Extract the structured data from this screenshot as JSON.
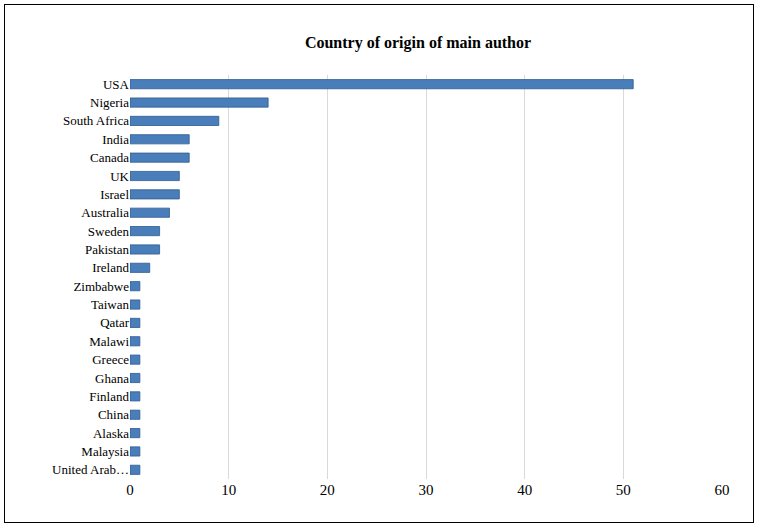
{
  "chart_data": {
    "type": "bar",
    "title": "Country of origin of main author",
    "orientation": "horizontal",
    "categories": [
      "USA",
      "Nigeria",
      "South Africa",
      "India",
      "Canada",
      "UK",
      "Israel",
      "Australia",
      "Sweden",
      "Pakistan",
      "Ireland",
      "Zimbabwe",
      "Taiwan",
      "Qatar",
      "Malawi",
      "Greece",
      "Ghana",
      "Finland",
      "China",
      "Alaska",
      "Malaysia",
      "United Arab…"
    ],
    "values": [
      51,
      14,
      9,
      6,
      6,
      5,
      5,
      4,
      3,
      3,
      2,
      1,
      1,
      1,
      1,
      1,
      1,
      1,
      1,
      1,
      1,
      1
    ],
    "color": "#4a7ebb",
    "xlim": [
      0,
      60
    ],
    "xticks": [
      0,
      10,
      20,
      30,
      40,
      50,
      60
    ],
    "grid": true
  }
}
